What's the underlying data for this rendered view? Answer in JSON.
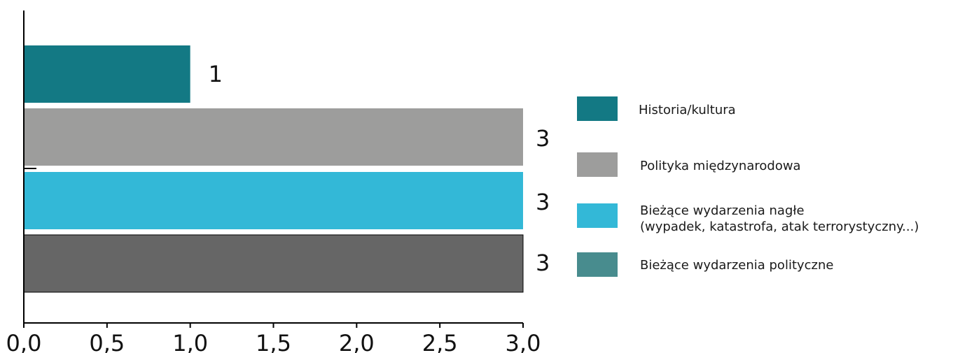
{
  "chart_data": {
    "type": "bar",
    "orientation": "horizontal",
    "title": "",
    "xlabel": "",
    "ylabel": "",
    "xlim": [
      0,
      3
    ],
    "x_ticks": [
      "0,0",
      "0,5",
      "1,0",
      "1,5",
      "2,0",
      "2,5",
      "3,0"
    ],
    "grid": false,
    "legend_position": "right",
    "series": [
      {
        "name": "Historia/kultura",
        "value": 1,
        "label": "1",
        "color": "#137984"
      },
      {
        "name": "Polityka międzynarodowa",
        "value": 3,
        "label": "3",
        "color": "#9d9d9c"
      },
      {
        "name": "Bieżące wydarzenia nagłe\n(wypadek, katastrofa, atak terrorystyczny...)",
        "value": 3,
        "label": "3",
        "color": "#33b8d7"
      },
      {
        "name": "Bieżące wydarzenia polityczne",
        "value": 3,
        "label": "3",
        "color": "#666666"
      }
    ],
    "legend_colors": [
      "#137984",
      "#9d9d9c",
      "#33b8d7",
      "#488c8e"
    ]
  }
}
